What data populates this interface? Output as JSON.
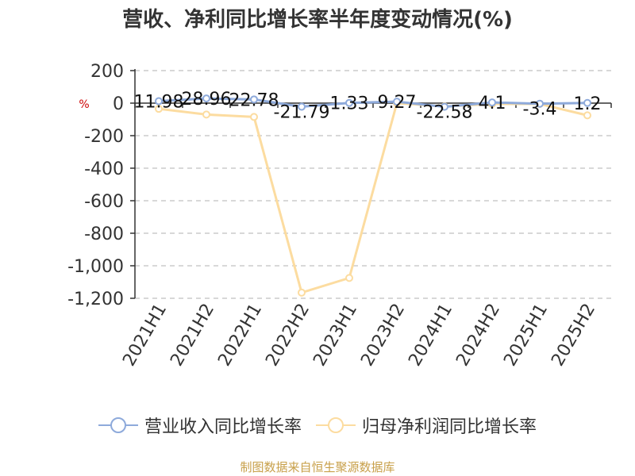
{
  "title": "营收、净利同比增长率半年度变动情况(%)",
  "source": "制图数据来自恒生聚源数据库",
  "chart_data": {
    "type": "line",
    "title": "营收、净利同比增长率半年度变动情况(%)",
    "ylabel": "%",
    "ylim": [
      -1200,
      200
    ],
    "yticks": [
      200,
      0,
      -200,
      -400,
      -600,
      -800,
      -1000,
      -1200
    ],
    "ytick_labels": [
      "200",
      "0",
      "-200",
      "-400",
      "-600",
      "-800",
      "-1,000",
      "-1,200"
    ],
    "categories": [
      "2021H1",
      "2021H2",
      "2022H1",
      "2022H2",
      "2023H1",
      "2023H2",
      "2024H1",
      "2024H2",
      "2025H1",
      "2025H2"
    ],
    "grid": true,
    "legend_position": "bottom",
    "series": [
      {
        "name": "营业收入同比增长率",
        "color": "#8eaadb",
        "values": [
          11.98,
          28.96,
          22.78,
          -21.79,
          1.33,
          9.27,
          -22.58,
          4.1,
          -3.4,
          1.2
        ],
        "labels": [
          "11.98",
          "28.96",
          "22.78",
          "-21.79",
          "1.33",
          "9.27",
          "-22.58",
          "4.1",
          "-3.4",
          "1.2"
        ]
      },
      {
        "name": "归母净利润同比增长率",
        "color": "#fcdca0",
        "values": [
          -35,
          -70,
          -85,
          -1165,
          -1075,
          0,
          -20,
          -5,
          -5,
          -75
        ]
      }
    ]
  }
}
